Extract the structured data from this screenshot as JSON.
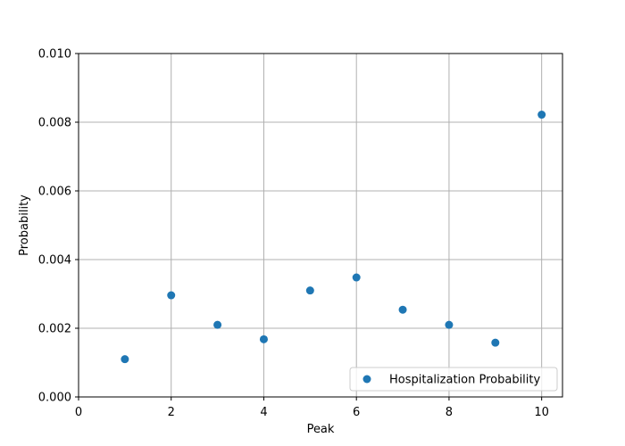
{
  "chart_data": {
    "type": "scatter",
    "title": "",
    "xlabel": "Peak",
    "ylabel": "Probability",
    "xlim": [
      0,
      10.45
    ],
    "ylim": [
      0,
      0.01
    ],
    "x_ticks": [
      0,
      2,
      4,
      6,
      8,
      10
    ],
    "y_ticks": [
      0.0,
      0.002,
      0.004,
      0.006,
      0.008,
      0.01
    ],
    "x_tick_labels": [
      "0",
      "2",
      "4",
      "6",
      "8",
      "10"
    ],
    "y_tick_labels": [
      "0.000",
      "0.002",
      "0.004",
      "0.006",
      "0.008",
      "0.010"
    ],
    "grid": true,
    "legend_position": "lower-right",
    "series": [
      {
        "name": "Hospitalization Probability",
        "color": "#1f77b4",
        "x": [
          1,
          2,
          3,
          4,
          5,
          6,
          7,
          8,
          9,
          10
        ],
        "y": [
          0.0011,
          0.00296,
          0.0021,
          0.00168,
          0.0031,
          0.00348,
          0.00254,
          0.0021,
          0.00158,
          0.00822
        ]
      }
    ]
  }
}
